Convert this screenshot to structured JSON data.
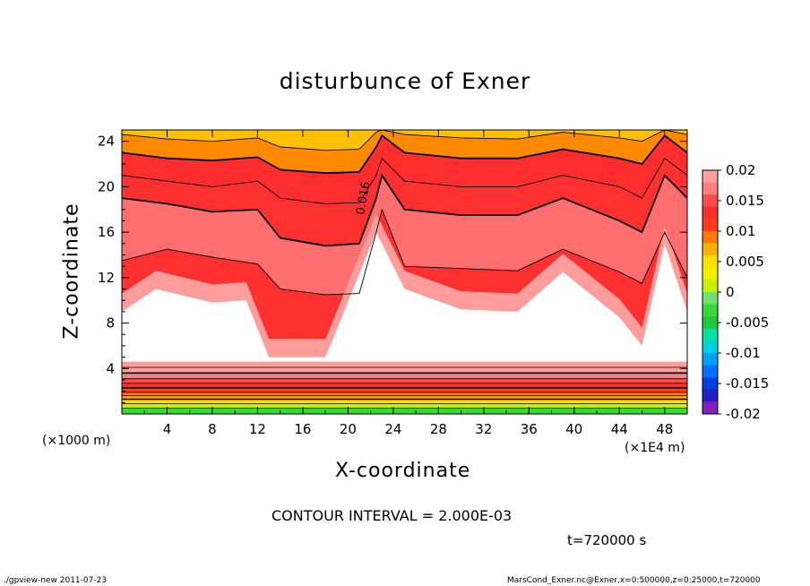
{
  "chart_data": {
    "type": "heatmap",
    "title": "disturbunce of Exner",
    "xlabel": "X-coordinate",
    "ylabel": "Z-coordinate",
    "x_unit_left": "(×1000 m)",
    "x_unit_right": "(×1E4 m)",
    "xlim": [
      0,
      50
    ],
    "ylim": [
      0,
      25
    ],
    "x_ticks": [
      4,
      8,
      12,
      16,
      20,
      24,
      28,
      32,
      36,
      40,
      44,
      48
    ],
    "y_ticks": [
      4,
      8,
      12,
      16,
      20,
      24
    ],
    "contour_interval_text": "CONTOUR INTERVAL = 2.000E-03",
    "contour_label": "0.016",
    "time_text": "t=720000 s",
    "colorbar": {
      "ticks": [
        "0.02",
        "0.015",
        "0.01",
        "0.005",
        "0",
        "-0.005",
        "-0.01",
        "-0.015",
        "-0.02"
      ],
      "range": [
        -0.02,
        0.02
      ]
    },
    "contours_bottom_z": [
      0.5,
      0.9,
      1.3,
      1.6,
      1.9,
      2.3,
      2.7,
      3.1,
      3.6,
      4.1
    ],
    "contours_top": [
      {
        "z": 14,
        "x": [
          0,
          4,
          8,
          12,
          14,
          18,
          21,
          22.5,
          23,
          25,
          30,
          35,
          39,
          44,
          46,
          48,
          50
        ],
        "z_values": [
          13.5,
          14.5,
          13.8,
          13.2,
          11,
          10.5,
          10.6,
          16,
          18,
          13,
          12.8,
          12.6,
          14.5,
          12.5,
          11.5,
          16,
          12
        ]
      },
      {
        "z": 17,
        "x": [
          0,
          4,
          8,
          12,
          14,
          18,
          21,
          22.5,
          23,
          25,
          30,
          35,
          39,
          44,
          46,
          48,
          50
        ],
        "z_values": [
          19,
          18.5,
          17.8,
          18,
          15.5,
          14.8,
          15,
          19,
          21,
          18,
          17.5,
          17.5,
          19,
          17,
          16,
          21,
          19
        ]
      },
      {
        "z": 20,
        "x": [
          0,
          4,
          8,
          12,
          14,
          18,
          21,
          22.5,
          23,
          25,
          30,
          35,
          39,
          44,
          46,
          48,
          50
        ],
        "z_values": [
          21,
          20.5,
          20,
          20.5,
          19,
          18.5,
          18.6,
          21,
          22.5,
          20.5,
          20,
          20,
          21,
          20,
          19,
          22.5,
          21
        ]
      },
      {
        "z": 22,
        "x": [
          0,
          4,
          8,
          12,
          14,
          18,
          21,
          22.5,
          23,
          25,
          30,
          35,
          39,
          44,
          46,
          48,
          50
        ],
        "z_values": [
          23,
          22.5,
          22.3,
          22.6,
          21.5,
          21.2,
          21.3,
          23.5,
          24.5,
          23,
          22.5,
          22.5,
          23.3,
          22.5,
          22,
          24.5,
          23
        ]
      },
      {
        "z": 23.8,
        "x": [
          0,
          4,
          8,
          12,
          14,
          18,
          21,
          22.5,
          23,
          25,
          30,
          35,
          39,
          44,
          46,
          48,
          50
        ],
        "z_values": [
          24.6,
          24.2,
          24,
          24.3,
          23.5,
          23.2,
          23.3,
          24.8,
          25,
          24.6,
          24.3,
          24.2,
          24.8,
          24.3,
          24,
          25,
          24.6
        ]
      }
    ],
    "white_region": {
      "upper": {
        "x": [
          0,
          3,
          8,
          11,
          13,
          18,
          22.5,
          25,
          30,
          35,
          39,
          44,
          46,
          48,
          50
        ],
        "z": [
          9,
          11,
          9.8,
          10,
          5,
          5,
          16,
          11,
          9.2,
          9,
          12.5,
          8.5,
          6,
          15,
          9
        ]
      },
      "lower_z": 4.6
    },
    "colors": {
      "deep_red": "#ff2e2e",
      "red": "#ff3030",
      "light_red": "#ff6f6f",
      "pink": "#ff9d9d",
      "orange": "#ff8a00",
      "gold": "#ffc000",
      "yellow": "#f0f000",
      "green": "#38d838"
    }
  },
  "footer": {
    "left": "./gpview-new  2011-07-23",
    "right": "MarsCond_Exner.nc@Exner,x=0:500000,z=0:25000,t=720000"
  }
}
